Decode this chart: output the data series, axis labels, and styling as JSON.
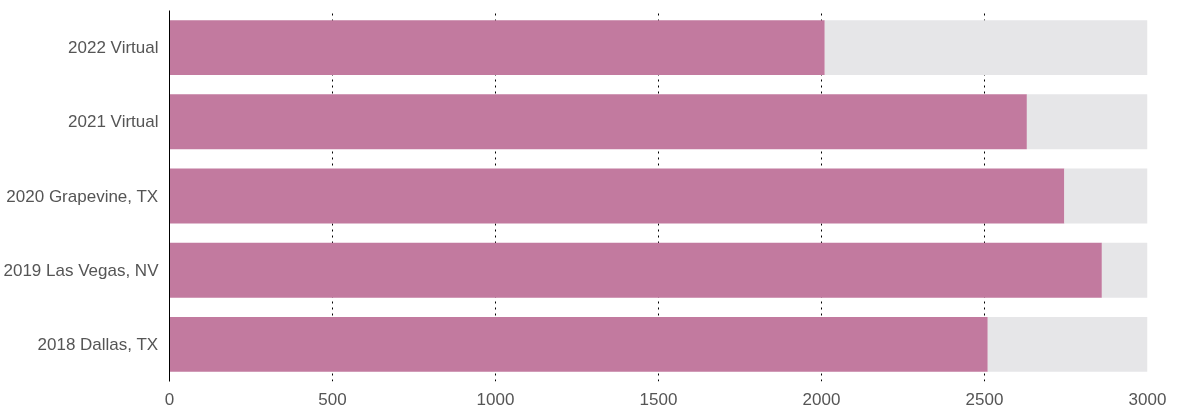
{
  "chart_data": {
    "type": "bar",
    "orientation": "horizontal",
    "stacked": true,
    "categories": [
      "2022 Virtual",
      "2021 Virtual",
      "2020 Grapevine, TX",
      "2019 Las Vegas, NV",
      "2018 Dallas, TX"
    ],
    "series": [
      {
        "color": "#c27a9f",
        "values": [
          2010,
          2630,
          2745,
          2860,
          2510
        ]
      },
      {
        "color": "#e6e6e8",
        "values": [
          990,
          370,
          255,
          140,
          490
        ]
      }
    ],
    "xlim": [
      0,
      3000
    ],
    "xticks": [
      0,
      500,
      1000,
      1500,
      2000,
      2500,
      3000
    ],
    "grid": "x"
  }
}
